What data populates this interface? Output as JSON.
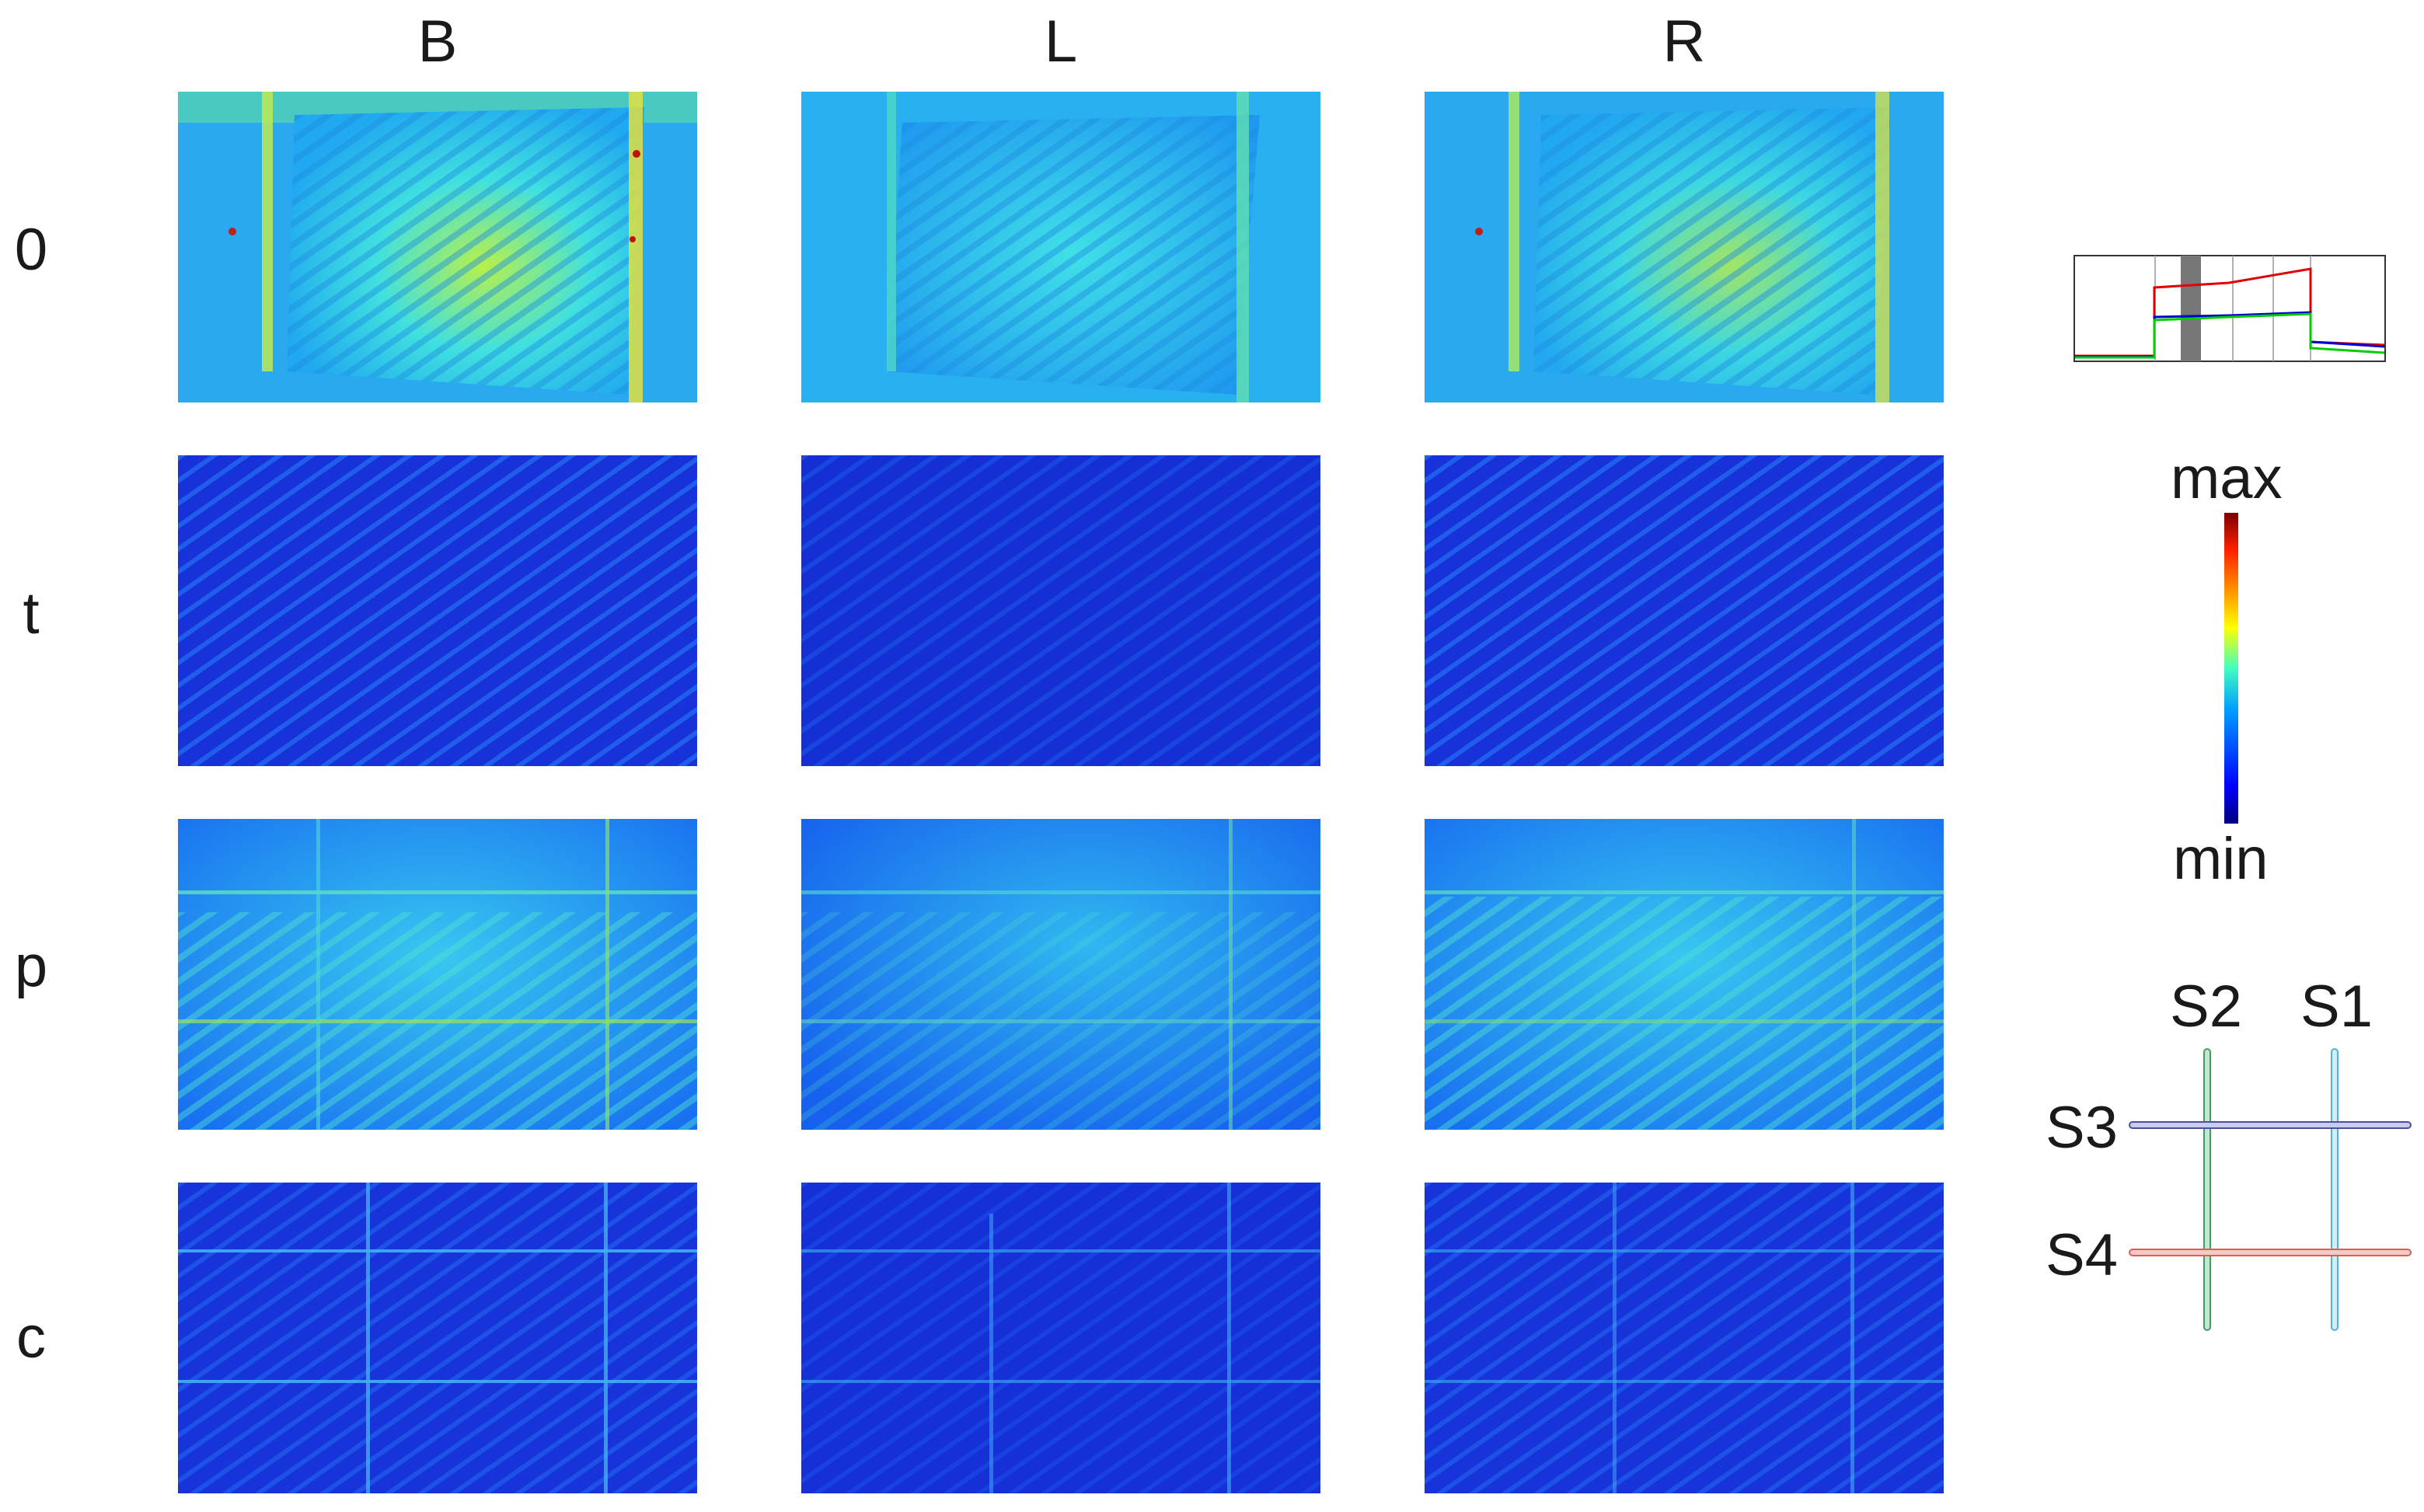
{
  "columns": [
    "B",
    "L",
    "R"
  ],
  "rows": [
    "0",
    "t",
    "p",
    "c"
  ],
  "colorbar": {
    "max_label": "max",
    "min_label": "min",
    "colors": [
      "#00007f",
      "#0000ff",
      "#00a0ff",
      "#40ffc0",
      "#ffff00",
      "#ff6000",
      "#7f0000"
    ]
  },
  "sensor_legend": {
    "S1": {
      "label": "S1",
      "color": "#5aaed6"
    },
    "S2": {
      "label": "S2",
      "color": "#4a9a64"
    },
    "S3": {
      "label": "S3",
      "color": "#4e4f9a"
    },
    "S4": {
      "label": "S4",
      "color": "#e05a5a"
    }
  },
  "inset_plot": {
    "series_colors": [
      "#e00000",
      "#0000cc",
      "#00cc00"
    ],
    "highlight_color": "#777777"
  }
}
